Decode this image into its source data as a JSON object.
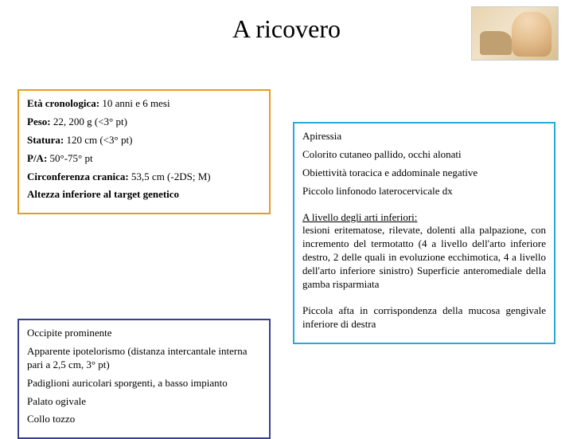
{
  "title": "A ricovero",
  "colors": {
    "border_left_top": "#e89a2a",
    "border_left_bottom": "#3a3f8f",
    "border_right": "#2aa8d8",
    "text": "#000000",
    "background": "#ffffff"
  },
  "left_top": {
    "eta_label": "Età cronologica:",
    "eta_val": " 10 anni e 6 mesi",
    "peso_label": "Peso:",
    "peso_val": " 22, 200 g (<3° pt)",
    "statura_label": "Statura:",
    "statura_val": " 120 cm (<3° pt)",
    "pa_label": "P/A:",
    "pa_val": " 50°-75° pt",
    "circ_label": "Circonferenza cranica:",
    "circ_val": " 53,5 cm (-2DS; M)",
    "altezza": "Altezza inferiore al target genetico"
  },
  "left_bottom": {
    "l1": "Occipite prominente",
    "l2": "Apparente ipotelorismo (distanza intercantale interna pari a 2,5 cm, 3° pt)",
    "l3": "Padiglioni auricolari sporgenti, a basso impianto",
    "l4": "Palato ogivale",
    "l5": "Collo tozzo"
  },
  "right": {
    "p1_l1": "Apiressia",
    "p1_l2": "Colorito cutaneo pallido, occhi alonati",
    "p1_l3": "Obiettività toracica e addominale negative",
    "p1_l4": "Piccolo linfonodo laterocervicale dx",
    "p2_head": "A livello degli arti inferiori:",
    "p2_body": "lesioni eritematose, rilevate, dolenti alla palpazione, con incremento del termotatto (4 a livello dell'arto inferiore destro, 2 delle quali in evoluzione ecchimotica, 4 a livello dell'arto inferiore sinistro) Superficie anteromediale della gamba risparmiata",
    "p3": "Piccola afta in corrispondenza della mucosa gengivale inferiore di destra"
  }
}
